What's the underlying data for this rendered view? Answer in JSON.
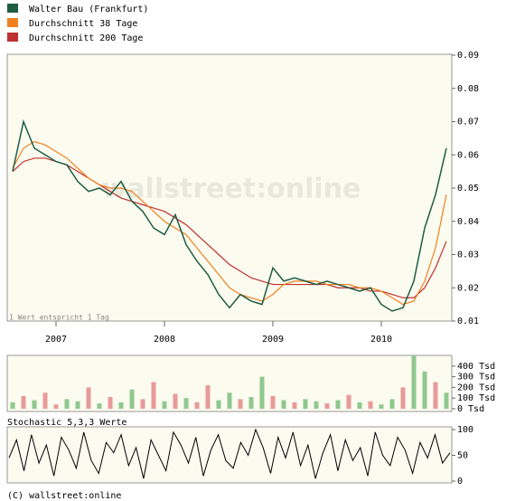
{
  "chart_data": [
    {
      "type": "line",
      "watermark": "wallstreet:online",
      "note": "1 Wert entspricht 1 Tag",
      "x": [
        2006.6,
        2006.7,
        2006.8,
        2006.9,
        2007.0,
        2007.1,
        2007.2,
        2007.3,
        2007.4,
        2007.5,
        2007.6,
        2007.7,
        2007.8,
        2007.9,
        2008.0,
        2008.1,
        2008.2,
        2008.3,
        2008.4,
        2008.5,
        2008.6,
        2008.7,
        2008.8,
        2008.9,
        2009.0,
        2009.1,
        2009.2,
        2009.3,
        2009.4,
        2009.5,
        2009.6,
        2009.7,
        2009.8,
        2009.9,
        2010.0,
        2010.1,
        2010.2,
        2010.3,
        2010.4,
        2010.5,
        2010.6
      ],
      "xlim": [
        2006.55,
        2010.65
      ],
      "xticks": [
        2007,
        2008,
        2009,
        2010
      ],
      "ylim": [
        0.01,
        0.09
      ],
      "yticks": [
        0.01,
        0.02,
        0.03,
        0.04,
        0.05,
        0.06,
        0.07,
        0.08,
        0.09
      ],
      "series": [
        {
          "name": "Walter Bau (Frankfurt)",
          "color": "#1e5c44",
          "values": [
            0.055,
            0.07,
            0.062,
            0.06,
            0.058,
            0.057,
            0.052,
            0.049,
            0.05,
            0.048,
            0.052,
            0.046,
            0.043,
            0.038,
            0.036,
            0.042,
            0.033,
            0.028,
            0.024,
            0.018,
            0.014,
            0.018,
            0.016,
            0.015,
            0.026,
            0.022,
            0.023,
            0.022,
            0.021,
            0.022,
            0.021,
            0.02,
            0.019,
            0.02,
            0.015,
            0.013,
            0.014,
            0.022,
            0.038,
            0.048,
            0.062
          ]
        },
        {
          "name": "Durchschnitt 38 Tage",
          "color": "#f08020",
          "values": [
            0.056,
            0.062,
            0.064,
            0.063,
            0.061,
            0.059,
            0.056,
            0.053,
            0.051,
            0.05,
            0.05,
            0.049,
            0.046,
            0.043,
            0.04,
            0.038,
            0.036,
            0.032,
            0.028,
            0.024,
            0.02,
            0.018,
            0.017,
            0.016,
            0.018,
            0.021,
            0.022,
            0.022,
            0.022,
            0.021,
            0.021,
            0.021,
            0.02,
            0.02,
            0.019,
            0.017,
            0.015,
            0.016,
            0.022,
            0.032,
            0.048
          ]
        },
        {
          "name": "Durchschnitt 200 Tage",
          "color": "#c03030",
          "values": [
            0.055,
            0.058,
            0.059,
            0.059,
            0.058,
            0.057,
            0.055,
            0.053,
            0.051,
            0.049,
            0.047,
            0.046,
            0.045,
            0.044,
            0.043,
            0.041,
            0.039,
            0.036,
            0.033,
            0.03,
            0.027,
            0.025,
            0.023,
            0.022,
            0.021,
            0.021,
            0.021,
            0.021,
            0.021,
            0.021,
            0.02,
            0.02,
            0.02,
            0.019,
            0.019,
            0.018,
            0.017,
            0.017,
            0.02,
            0.026,
            0.034
          ]
        }
      ]
    },
    {
      "type": "bar",
      "values": [
        60,
        120,
        80,
        150,
        40,
        90,
        70,
        200,
        50,
        110,
        60,
        180,
        90,
        250,
        70,
        140,
        100,
        60,
        220,
        80,
        150,
        90,
        110,
        300,
        120,
        80,
        60,
        90,
        70,
        50,
        80,
        130,
        60,
        70,
        40,
        90,
        200,
        500,
        350,
        250,
        150
      ],
      "colors": [
        "#8fc88f",
        "#e89a9a",
        "#8fc88f",
        "#e89a9a",
        "#e89a9a",
        "#8fc88f",
        "#8fc88f",
        "#e89a9a",
        "#8fc88f",
        "#e89a9a",
        "#8fc88f",
        "#8fc88f",
        "#e89a9a",
        "#e89a9a",
        "#8fc88f",
        "#e89a9a",
        "#8fc88f",
        "#e89a9a",
        "#e89a9a",
        "#8fc88f",
        "#8fc88f",
        "#e89a9a",
        "#8fc88f",
        "#8fc88f",
        "#e89a9a",
        "#8fc88f",
        "#e89a9a",
        "#8fc88f",
        "#8fc88f",
        "#e89a9a",
        "#8fc88f",
        "#e89a9a",
        "#8fc88f",
        "#e89a9a",
        "#8fc88f",
        "#8fc88f",
        "#e89a9a",
        "#8fc88f",
        "#8fc88f",
        "#e89a9a",
        "#8fc88f"
      ],
      "ylim": [
        0,
        500
      ],
      "yticks": [
        {
          "value": 0,
          "label": "0 Tsd"
        },
        {
          "value": 100,
          "label": "100 Tsd"
        },
        {
          "value": 200,
          "label": "200 Tsd"
        },
        {
          "value": 300,
          "label": "300 Tsd"
        },
        {
          "value": 400,
          "label": "400 Tsd"
        }
      ]
    },
    {
      "type": "line",
      "title": "Stochastic 5,3,3 Werte",
      "color": "#000000",
      "values": [
        45,
        80,
        20,
        90,
        35,
        70,
        10,
        85,
        60,
        25,
        95,
        40,
        15,
        75,
        55,
        90,
        30,
        65,
        5,
        80,
        50,
        20,
        95,
        70,
        35,
        85,
        10,
        60,
        90,
        40,
        25,
        75,
        50,
        100,
        65,
        15,
        85,
        45,
        95,
        30,
        70,
        5,
        55,
        90,
        20,
        80,
        40,
        65,
        10,
        95,
        50,
        30,
        85,
        60,
        15,
        75,
        45,
        90,
        35,
        55
      ],
      "ylim": [
        0,
        100
      ],
      "yticks": [
        0,
        50,
        100
      ]
    }
  ],
  "footer": "(C) wallstreet:online"
}
